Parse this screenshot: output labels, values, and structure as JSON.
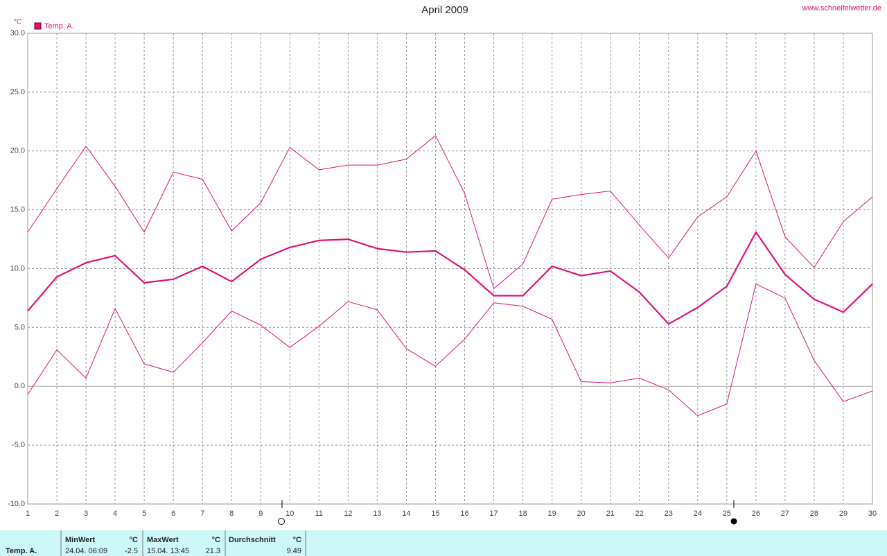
{
  "chart_data": {
    "type": "line",
    "title": "April 2009",
    "source": "www.schneifelwetter.de",
    "y_unit": "°C",
    "x": [
      1,
      2,
      3,
      4,
      5,
      6,
      7,
      8,
      9,
      10,
      11,
      12,
      13,
      14,
      15,
      16,
      17,
      18,
      19,
      20,
      21,
      22,
      23,
      24,
      25,
      26,
      27,
      28,
      29,
      30
    ],
    "xlim": [
      1,
      30
    ],
    "xticks": [
      1,
      2,
      3,
      4,
      5,
      6,
      7,
      8,
      9,
      10,
      11,
      12,
      13,
      14,
      15,
      16,
      17,
      18,
      19,
      20,
      21,
      22,
      23,
      24,
      25,
      26,
      27,
      28,
      29,
      30
    ],
    "ylim": [
      -10,
      30
    ],
    "yticks": [
      {
        "value": -10,
        "label": "-10.0"
      },
      {
        "value": -5,
        "label": "-5.0"
      },
      {
        "value": 0,
        "label": "0.0"
      },
      {
        "value": 5,
        "label": "5.0"
      },
      {
        "value": 10,
        "label": "10.0"
      },
      {
        "value": 15,
        "label": "15.0"
      },
      {
        "value": 20,
        "label": "20.0"
      },
      {
        "value": 25,
        "label": "25.0"
      },
      {
        "value": 30,
        "label": "30.0"
      }
    ],
    "grid": true,
    "legend": "top-left",
    "series": [
      {
        "name": "Temp. A.",
        "color": "#e0107a",
        "values": [
          6.4,
          9.3,
          10.5,
          11.1,
          8.8,
          9.1,
          10.2,
          8.9,
          10.8,
          11.8,
          12.4,
          12.5,
          11.7,
          11.4,
          11.5,
          9.9,
          7.7,
          7.7,
          10.2,
          9.4,
          9.8,
          8.0,
          5.3,
          6.7,
          8.5,
          13.1,
          9.5,
          7.4,
          6.3,
          8.7
        ]
      },
      {
        "color": "#e0107a",
        "values": [
          13.1,
          16.8,
          20.4,
          17.0,
          13.1,
          18.2,
          17.6,
          13.2,
          15.6,
          20.3,
          18.4,
          18.8,
          18.8,
          19.3,
          21.3,
          16.4,
          8.3,
          10.4,
          15.9,
          16.3,
          16.6,
          13.7,
          10.9,
          14.4,
          16.1,
          20.0,
          12.7,
          10.1,
          14.0,
          16.1
        ]
      },
      {
        "color": "#e0107a",
        "values": [
          -0.7,
          3.1,
          0.7,
          6.6,
          1.9,
          1.2,
          3.7,
          6.4,
          5.2,
          3.3,
          5.1,
          7.2,
          6.5,
          3.2,
          1.7,
          4.0,
          7.1,
          6.8,
          5.7,
          0.4,
          0.3,
          0.7,
          -0.3,
          -2.5,
          -1.5,
          8.7,
          7.5,
          2.2,
          -1.3,
          -0.4
        ]
      }
    ]
  },
  "summary": {
    "row_label": "Temp. A.",
    "min": {
      "header": "MinWert",
      "unit": "°C",
      "time": "24.04.  06:09",
      "value": -2.5
    },
    "max": {
      "header": "MaxWert",
      "unit": "°C",
      "time": "15.04.  13:45",
      "value": 21.3
    },
    "avg": {
      "header": "Durchschnitt",
      "unit": "°C",
      "value": 9.49
    }
  }
}
